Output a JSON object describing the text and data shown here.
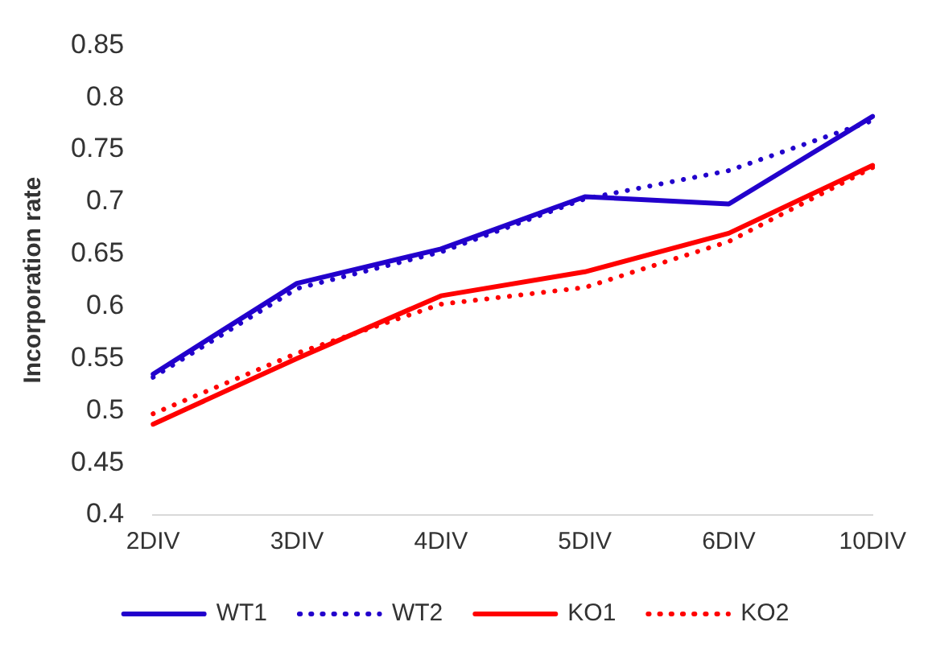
{
  "chart_data": {
    "type": "line",
    "ylabel": "Incorporation rate",
    "categories": [
      "2DIV",
      "3DIV",
      "4DIV",
      "5DIV",
      "6DIV",
      "10DIV"
    ],
    "series": [
      {
        "name": "WT1",
        "color": "#2200cc",
        "line_style": "solid",
        "values": [
          0.535,
          0.622,
          0.655,
          0.705,
          0.698,
          0.782
        ]
      },
      {
        "name": "WT2",
        "color": "#2200cc",
        "line_style": "dotted",
        "values": [
          0.532,
          0.617,
          0.652,
          0.703,
          0.73,
          0.778
        ]
      },
      {
        "name": "KO1",
        "color": "#ff0000",
        "line_style": "solid",
        "values": [
          0.487,
          0.55,
          0.61,
          0.633,
          0.67,
          0.735
        ]
      },
      {
        "name": "KO2",
        "color": "#ff0000",
        "line_style": "dotted",
        "values": [
          0.497,
          0.555,
          0.602,
          0.618,
          0.662,
          0.733
        ]
      }
    ],
    "ylim": [
      0.4,
      0.85
    ],
    "yticks": [
      0.4,
      0.45,
      0.5,
      0.55,
      0.6,
      0.65,
      0.7,
      0.75,
      0.8,
      0.85
    ],
    "grid": false,
    "legend": "bottom",
    "marker": "none"
  }
}
